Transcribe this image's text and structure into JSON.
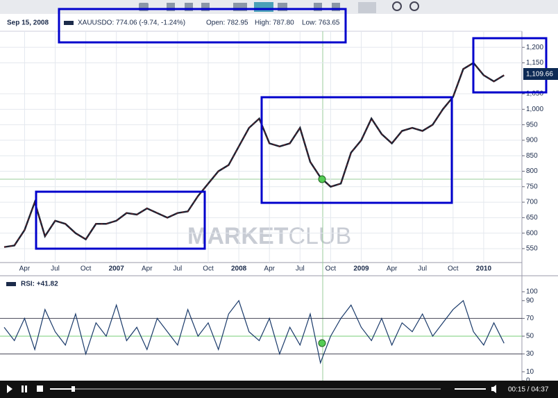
{
  "chart_data": [
    {
      "type": "line",
      "color": "#1c2233",
      "accent": "#8b1a1a",
      "categories": [
        null,
        null,
        "Apr",
        null,
        null,
        "Jul",
        null,
        null,
        "Oct",
        null,
        null,
        "2007",
        null,
        null,
        "Apr",
        null,
        null,
        "Jul",
        null,
        null,
        "Oct",
        null,
        null,
        "2008",
        null,
        null,
        "Apr",
        null,
        null,
        "Jul",
        null,
        null,
        "Oct",
        null,
        null,
        "2009",
        null,
        null,
        "Apr",
        null,
        null,
        "Jul",
        null,
        null,
        "Oct",
        null,
        null,
        "2010",
        null,
        null
      ],
      "values": [
        555,
        560,
        610,
        700,
        590,
        640,
        630,
        600,
        580,
        630,
        630,
        640,
        665,
        660,
        680,
        665,
        650,
        665,
        670,
        720,
        760,
        800,
        820,
        880,
        940,
        970,
        890,
        880,
        890,
        940,
        830,
        780,
        750,
        760,
        860,
        900,
        970,
        920,
        890,
        930,
        940,
        930,
        950,
        1000,
        1040,
        1130,
        1150,
        1110,
        1090,
        1110
      ],
      "ylim": [
        505,
        1252
      ],
      "yticks": [
        550,
        600,
        650,
        700,
        750,
        800,
        850,
        900,
        950,
        {
          "value": 1000,
          "label": "1,000"
        },
        {
          "value": 1050,
          "label": "1,050"
        },
        {
          "value": 1150,
          "label": "1,150"
        },
        {
          "value": 1200,
          "label": "1,200"
        }
      ],
      "grid": true,
      "last_label": "1,109.66",
      "cursor_date": "Sep 15, 2008",
      "legend": {
        "quote": "XAUUSDO: 774.06 (-9.74, -1.24%)",
        "open": "Open: 782.95",
        "high": "High: 787.80",
        "low": "Low: 763.65"
      },
      "watermark": {
        "bold": "MARKET",
        "light": "CLUB"
      }
    },
    {
      "type": "line",
      "title": "RSI: +41.82",
      "color": "#1a3a6a",
      "values": [
        60,
        45,
        70,
        35,
        80,
        55,
        40,
        75,
        30,
        65,
        50,
        85,
        45,
        60,
        35,
        70,
        55,
        40,
        80,
        50,
        65,
        35,
        75,
        90,
        55,
        45,
        70,
        30,
        60,
        40,
        75,
        20,
        50,
        70,
        85,
        60,
        45,
        70,
        40,
        65,
        55,
        75,
        50,
        65,
        80,
        90,
        55,
        40,
        65,
        42
      ],
      "ylim": [
        0,
        100
      ],
      "yticks": [
        0,
        10,
        30,
        50,
        70,
        90,
        100
      ],
      "grid_values": [
        30,
        50,
        70
      ]
    }
  ],
  "player": {
    "time": "00:15 / 04:37"
  }
}
